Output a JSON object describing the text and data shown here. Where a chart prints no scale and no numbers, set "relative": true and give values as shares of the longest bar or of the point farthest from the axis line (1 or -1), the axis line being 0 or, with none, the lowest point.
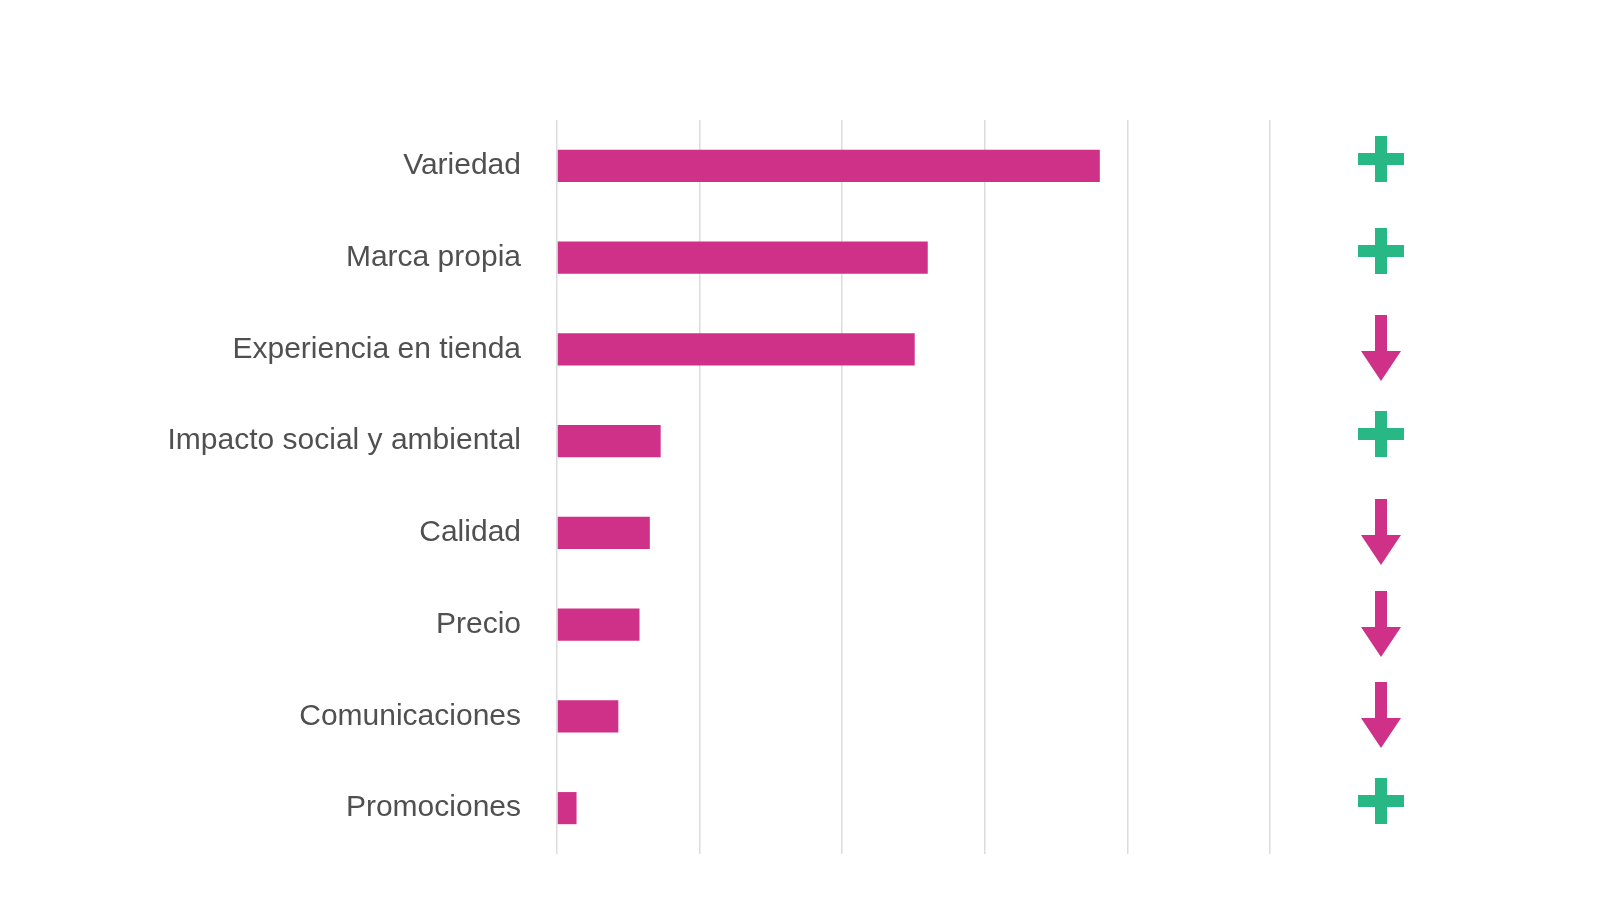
{
  "chart_data": {
    "type": "bar",
    "orientation": "horizontal",
    "relative": true,
    "grid": "x",
    "color": "#cf3189",
    "categories": [
      "Variedad",
      "Marca propia",
      "Experiencia en tienda",
      "Impacto social y ambiental",
      "Calidad",
      "Precio",
      "Comunicaciones",
      "Promociones"
    ],
    "values": [
      1,
      0.683,
      0.659,
      0.191,
      0.171,
      0.152,
      0.113,
      0.036
    ]
  }
}
